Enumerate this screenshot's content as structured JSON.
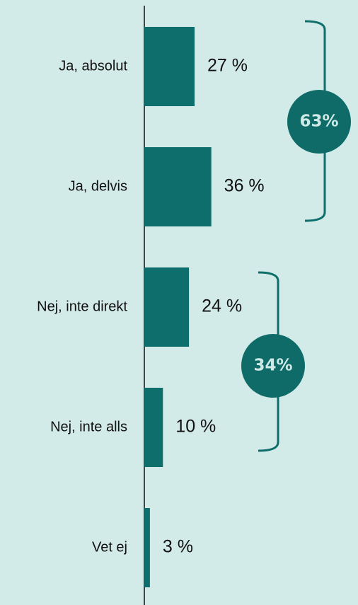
{
  "chart_data": {
    "type": "bar",
    "orientation": "horizontal",
    "categories": [
      "Ja, absolut",
      "Ja, delvis",
      "Nej, inte direkt",
      "Nej, inte alls",
      "Vet ej"
    ],
    "values": [
      27,
      36,
      24,
      10,
      3
    ],
    "value_labels": [
      "27 %",
      "36 %",
      "24 %",
      "10 %",
      "3 %"
    ],
    "color": "#0e6e6b",
    "annotations": [
      "63%",
      "34%"
    ]
  }
}
